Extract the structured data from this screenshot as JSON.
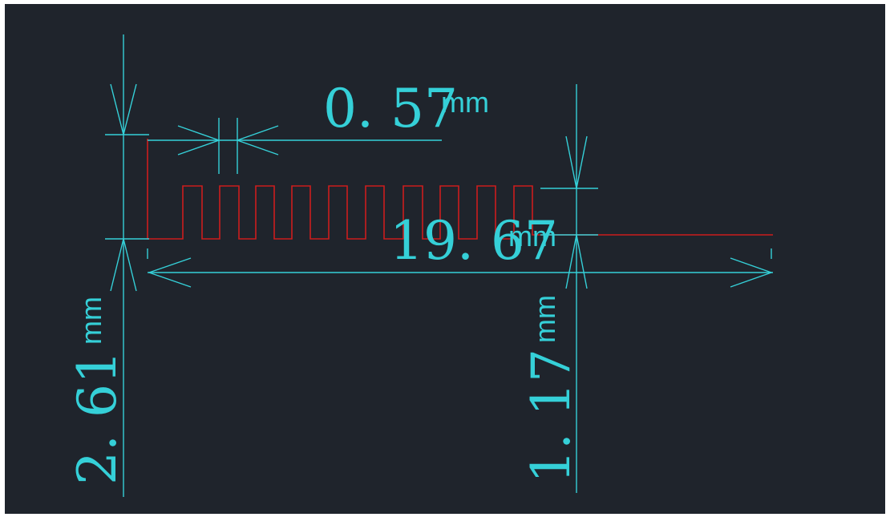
{
  "dimensions": {
    "pitch": {
      "value": "0. 57",
      "unit": "mm"
    },
    "total_length": {
      "value": "19. 67",
      "unit": "mm"
    },
    "total_height": {
      "value": "2. 61",
      "unit": "mm"
    },
    "tail_height": {
      "value": "1. 17",
      "unit": "mm"
    }
  },
  "colors": {
    "background": "#1f242c",
    "dimension_lines": "#35d0d8",
    "trace": "#cc1d1d"
  }
}
